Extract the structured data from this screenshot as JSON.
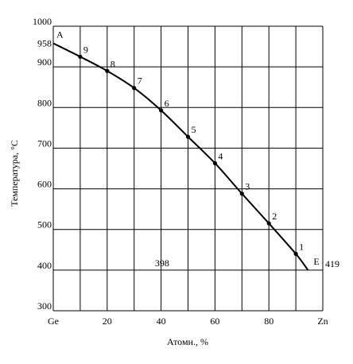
{
  "chart_data": {
    "type": "line",
    "title": "",
    "xlabel": "Атомн., %",
    "ylabel": "Температура, °С",
    "xlim": [
      0,
      100
    ],
    "ylim": [
      300,
      1000
    ],
    "x_ticks": [
      {
        "value": 0,
        "label": "Ge"
      },
      {
        "value": 20,
        "label": "20"
      },
      {
        "value": 40,
        "label": "40"
      },
      {
        "value": 60,
        "label": "60"
      },
      {
        "value": 80,
        "label": "80"
      },
      {
        "value": 100,
        "label": "Zn"
      }
    ],
    "y_ticks": [
      300,
      400,
      500,
      600,
      700,
      800,
      900,
      1000
    ],
    "y_extra_label": {
      "value": 958,
      "label": "958"
    },
    "grid": true,
    "series": [
      {
        "x": [
          0,
          10,
          20,
          30,
          40,
          50,
          60,
          70,
          80,
          90,
          94.5
        ],
        "y": [
          958,
          925,
          890,
          848,
          793,
          728,
          663,
          588,
          515,
          440,
          400
        ]
      }
    ],
    "points": [
      {
        "label": "9",
        "x": 10,
        "y": 925
      },
      {
        "label": "8",
        "x": 20,
        "y": 890
      },
      {
        "label": "7",
        "x": 30,
        "y": 848
      },
      {
        "label": "6",
        "x": 40,
        "y": 793
      },
      {
        "label": "5",
        "x": 50,
        "y": 728
      },
      {
        "label": "4",
        "x": 60,
        "y": 663
      },
      {
        "label": "3",
        "x": 70,
        "y": 588
      },
      {
        "label": "2",
        "x": 80,
        "y": 515
      },
      {
        "label": "1",
        "x": 90,
        "y": 440
      }
    ],
    "annotations": [
      {
        "text": "A",
        "x": 0,
        "y": 958
      },
      {
        "text": "E",
        "x": 94.5,
        "y": 400
      },
      {
        "text": "398",
        "x": 33,
        "y": 400
      },
      {
        "text": "419",
        "x": 100,
        "y": 400
      }
    ]
  }
}
